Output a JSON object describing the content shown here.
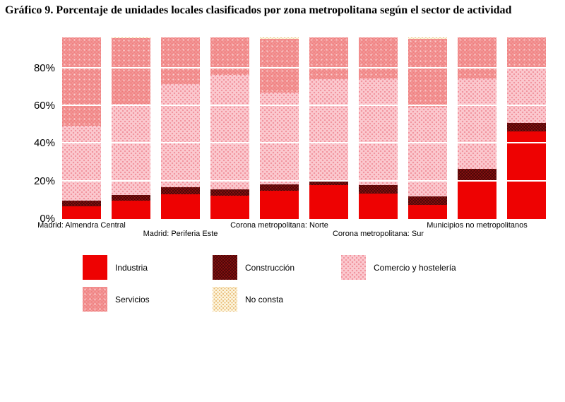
{
  "title": "Gráfico 9. Porcentaje de unidades locales clasificados por zona metropolitana según el sector de actividad",
  "series_colors": [
    "#EE0202",
    "#8A1111",
    "#FBC9CF",
    "#EF7A7A",
    "#FCF5DE"
  ],
  "y_axis": {
    "ticks": [
      "0%",
      "20%",
      "40%",
      "60%",
      "80%"
    ]
  },
  "x_axis": {
    "labels": [
      {
        "text": "Madrid: Almendra Central",
        "bar": 0,
        "row": 0
      },
      {
        "text": "Madrid: Periferia Este",
        "bar": 2,
        "row": 1
      },
      {
        "text": "Corona metropolitana: Norte",
        "bar": 4,
        "row": 0
      },
      {
        "text": "Corona metropolitana: Sur",
        "bar": 6,
        "row": 1
      },
      {
        "text": "Municipios no metropolitanos",
        "bar": 8,
        "row": 0
      }
    ]
  },
  "chart_data": {
    "type": "bar",
    "stacked": true,
    "title": "Gráfico 9. Porcentaje de unidades locales clasificados por zona metropolitana según el sector de actividad",
    "xlabel": "",
    "ylabel": "",
    "ylim": [
      0,
      100
    ],
    "gridlines": [
      20,
      40,
      60,
      80
    ],
    "legend_position": "bottom",
    "categories": [
      "Madrid: Almendra Central",
      "",
      "Madrid: Periferia Este",
      "",
      "Corona metropolitana: Norte",
      "",
      "Corona metropolitana: Sur",
      "",
      "Municipios no metropolitanos",
      ""
    ],
    "series": [
      {
        "name": "Industria",
        "color": "#EE0202",
        "values": [
          7.0,
          10.0,
          13.5,
          13.0,
          15.5,
          18.5,
          14.0,
          7.8,
          20.5,
          48.4
        ]
      },
      {
        "name": "Construcción",
        "color": "#7B0D0D",
        "values": [
          3.0,
          3.4,
          3.9,
          3.5,
          3.5,
          2.7,
          4.5,
          4.6,
          7.3,
          4.4
        ]
      },
      {
        "name": "Comercio y hostelería",
        "color": "#FBC9CF",
        "values": [
          41.5,
          50.0,
          56.8,
          63.0,
          50.5,
          56.0,
          59.0,
          49.3,
          49.8,
          30.8
        ]
      },
      {
        "name": "Servicios",
        "color": "#F59090",
        "values": [
          48.5,
          36.1,
          25.8,
          20.5,
          29.9,
          22.8,
          22.5,
          37.7,
          22.4,
          16.4
        ]
      },
      {
        "name": "No consta",
        "color": "#F2DFAE",
        "values": [
          0.0,
          0.5,
          0.0,
          0.0,
          0.6,
          0.0,
          0.0,
          0.6,
          0.0,
          0.0
        ]
      }
    ]
  },
  "legend": {
    "items": [
      {
        "label": "Industria",
        "pattern": "solid"
      },
      {
        "label": "Construcción",
        "pattern": "crosshatch"
      },
      {
        "label": "Comercio y hostelería",
        "pattern": "dots"
      },
      {
        "label": "Servicios",
        "pattern": "checker"
      },
      {
        "label": "No consta",
        "pattern": "dots"
      }
    ]
  }
}
